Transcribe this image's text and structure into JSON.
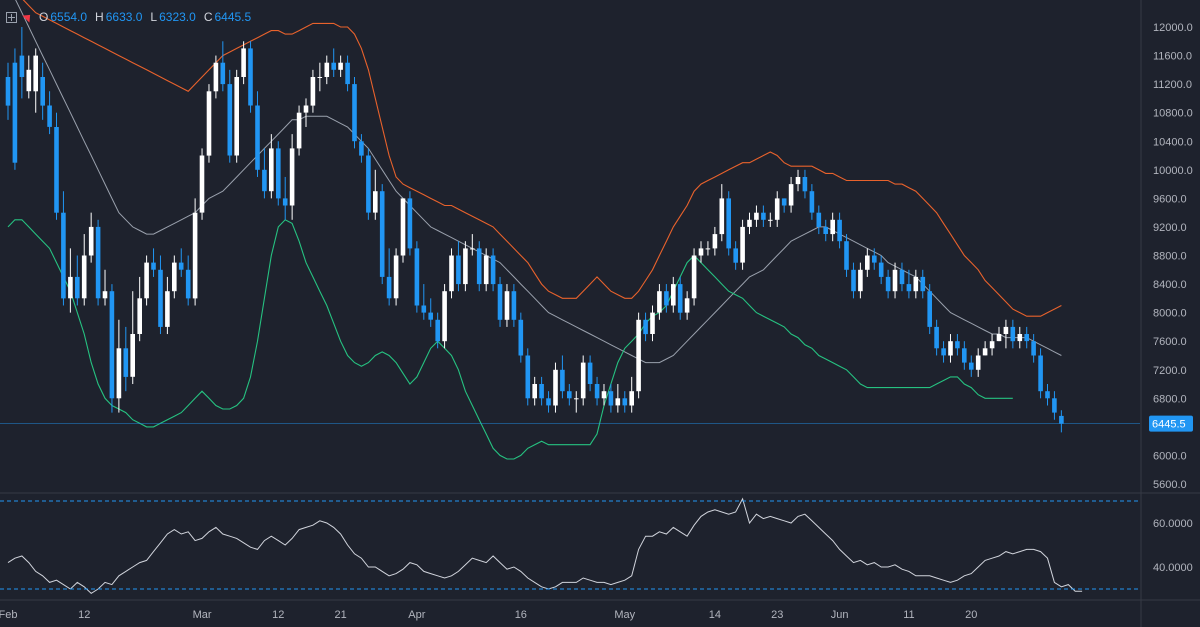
{
  "ohlc": {
    "o_label": "O",
    "o": "6554.0",
    "h_label": "H",
    "h": "6633.0",
    "l_label": "L",
    "l": "6323.0",
    "c_label": "C",
    "c": "6445.5"
  },
  "colors": {
    "background": "#1e222d",
    "up_candle": "#ffffff",
    "down_candle": "#2196f3",
    "upper_band": "#e8622c",
    "lower_band": "#26c281",
    "middle_band": "#9aa1ad",
    "rsi_line": "#d1d4dc",
    "dashed_level": "#2196f3"
  },
  "chart_data": [
    {
      "type": "candlestick",
      "title": "",
      "y_axis_ticks": [
        "12000.0",
        "11600.0",
        "11200.0",
        "10800.0",
        "10400.0",
        "10000.0",
        "9600.0",
        "9200.0",
        "8800.0",
        "8400.0",
        "8000.0",
        "7600.0",
        "7200.0",
        "6800.0",
        "6400.0",
        "6000.0",
        "5600.0"
      ],
      "ylim": [
        5500,
        12100
      ],
      "x_axis_labels": [
        {
          "label": "Feb",
          "day": 0
        },
        {
          "label": "12",
          "day": 11
        },
        {
          "label": "Mar",
          "day": 28
        },
        {
          "label": "12",
          "day": 39
        },
        {
          "label": "21",
          "day": 48
        },
        {
          "label": "Apr",
          "day": 59
        },
        {
          "label": "16",
          "day": 74
        },
        {
          "label": "May",
          "day": 89
        },
        {
          "label": "14",
          "day": 102
        },
        {
          "label": "23",
          "day": 111
        },
        {
          "label": "Jun",
          "day": 120
        },
        {
          "label": "11",
          "day": 130
        },
        {
          "label": "20",
          "day": 139
        }
      ],
      "last_price": 6445.5,
      "last_price_label": "6445.5",
      "closes": [
        10900,
        10100,
        11300,
        11400,
        11600,
        10900,
        10600,
        9400,
        8200,
        8500,
        8200,
        8800,
        9200,
        8200,
        8300,
        6800,
        7500,
        7100,
        7700,
        8200,
        8700,
        8600,
        7800,
        8300,
        8700,
        8600,
        8200,
        9400,
        10200,
        11100,
        11500,
        11200,
        10200,
        11300,
        11700,
        10900,
        10000,
        9700,
        10300,
        9600,
        9500,
        10300,
        10800,
        10900,
        11300,
        11300,
        11500,
        11400,
        11500,
        11200,
        10400,
        10200,
        9400,
        9700,
        8500,
        8200,
        8800,
        9600,
        8900,
        8100,
        8000,
        7900,
        7600,
        8300,
        8800,
        8400,
        8900,
        8900,
        8400,
        8800,
        8400,
        7900,
        8300,
        7900,
        7400,
        6800,
        7000,
        6800,
        6700,
        7200,
        6900,
        6800,
        6800,
        7300,
        7000,
        6800,
        6900,
        6700,
        6800,
        6700,
        6900,
        7900,
        7700,
        8000,
        8300,
        8100,
        8400,
        8000,
        8200,
        8800,
        8900,
        8900,
        9100,
        9600,
        8900,
        8700,
        9200,
        9300,
        9400,
        9300,
        9300,
        9600,
        9500,
        9800,
        9900,
        9700,
        9400,
        9200,
        9100,
        9300,
        9000,
        8600,
        8300,
        8600,
        8800,
        8700,
        8500,
        8300,
        8600,
        8400,
        8300,
        8500,
        8300,
        7800,
        7500,
        7400,
        7600,
        7500,
        7300,
        7200,
        7400,
        7500,
        7600,
        7700,
        7800,
        7600,
        7700,
        7600,
        7400,
        6900,
        6800,
        6600,
        6445.5
      ],
      "opens": [
        11300,
        11500,
        11600,
        11100,
        11100,
        11300,
        10900,
        10600,
        9400,
        8200,
        8500,
        8200,
        8800,
        9200,
        8200,
        8300,
        6800,
        7500,
        7100,
        7700,
        8200,
        8700,
        8600,
        7800,
        8300,
        8700,
        8600,
        8200,
        9400,
        10200,
        11100,
        11500,
        11200,
        10200,
        11300,
        11700,
        10900,
        10000,
        9700,
        10300,
        9600,
        9500,
        10300,
        10800,
        10900,
        11300,
        11300,
        11500,
        11400,
        11500,
        11200,
        10400,
        10200,
        9400,
        9700,
        8500,
        8200,
        8800,
        9600,
        8900,
        8100,
        8000,
        7900,
        7600,
        8300,
        8800,
        8400,
        8900,
        8900,
        8400,
        8800,
        8400,
        7900,
        8300,
        7900,
        7400,
        6800,
        7000,
        6800,
        6700,
        7200,
        6900,
        6800,
        6800,
        7300,
        7000,
        6800,
        6900,
        6700,
        6800,
        6700,
        6900,
        7900,
        7700,
        8000,
        8300,
        8100,
        8400,
        8000,
        8200,
        8800,
        8900,
        8900,
        9100,
        9600,
        8900,
        8700,
        9200,
        9300,
        9400,
        9300,
        9300,
        9600,
        9500,
        9800,
        9900,
        9700,
        9400,
        9200,
        9100,
        9300,
        9000,
        8600,
        8300,
        8600,
        8800,
        8700,
        8500,
        8300,
        8600,
        8400,
        8300,
        8500,
        8300,
        7800,
        7500,
        7400,
        7600,
        7500,
        7300,
        7200,
        7400,
        7500,
        7600,
        7700,
        7800,
        7600,
        7700,
        7600,
        7400,
        6900,
        6800,
        6554
      ],
      "highs": [
        11500,
        11700,
        12000,
        11600,
        11700,
        11500,
        11100,
        10800,
        9700,
        8900,
        8800,
        9100,
        9400,
        9300,
        8600,
        8400,
        7900,
        7800,
        8300,
        8500,
        8800,
        8900,
        8800,
        8500,
        8800,
        8900,
        8800,
        9600,
        10300,
        11200,
        11600,
        11800,
        11400,
        11400,
        11800,
        11800,
        11100,
        10300,
        10500,
        10400,
        9900,
        10500,
        10900,
        11000,
        11400,
        11500,
        11600,
        11700,
        11600,
        11600,
        11300,
        10500,
        10300,
        10000,
        9800,
        8900,
        8900,
        9600,
        9700,
        9000,
        8400,
        8200,
        8000,
        8400,
        8900,
        9000,
        9000,
        9100,
        9000,
        8900,
        8900,
        8500,
        8400,
        8400,
        8000,
        7500,
        7100,
        7100,
        6900,
        7300,
        7400,
        7000,
        6900,
        7400,
        7400,
        7100,
        7000,
        7000,
        7000,
        6900,
        7100,
        8000,
        8000,
        8100,
        8400,
        8400,
        8500,
        8500,
        8300,
        8900,
        9000,
        9000,
        9200,
        9800,
        9700,
        9000,
        9300,
        9400,
        9500,
        9500,
        9400,
        9700,
        9600,
        9900,
        10000,
        10000,
        9800,
        9500,
        9300,
        9400,
        9400,
        9100,
        8700,
        8700,
        8900,
        8900,
        8800,
        8600,
        8700,
        8700,
        8600,
        8600,
        8600,
        8400,
        7900,
        7600,
        7700,
        7700,
        7600,
        7400,
        7500,
        7600,
        7700,
        7800,
        7900,
        7900,
        7800,
        7800,
        7700,
        7500,
        7000,
        6900,
        6633
      ],
      "lows": [
        10700,
        10000,
        11000,
        11000,
        10800,
        10700,
        10500,
        9300,
        8100,
        8000,
        8100,
        8100,
        8700,
        8100,
        8100,
        6600,
        6600,
        6900,
        7000,
        7600,
        8100,
        8500,
        7700,
        7700,
        8200,
        8500,
        8100,
        8100,
        9300,
        10100,
        11000,
        11100,
        10100,
        10100,
        11200,
        10800,
        9900,
        9600,
        9600,
        9500,
        9300,
        9300,
        10200,
        10600,
        10800,
        11100,
        11200,
        11300,
        11300,
        11100,
        10300,
        10100,
        9300,
        9300,
        8400,
        8100,
        8100,
        8700,
        8800,
        8000,
        7900,
        7800,
        7500,
        7500,
        8200,
        8300,
        8300,
        8800,
        8300,
        8300,
        8300,
        7800,
        7800,
        7800,
        7300,
        6700,
        6700,
        6700,
        6600,
        6600,
        6800,
        6700,
        6600,
        6700,
        6900,
        6700,
        6700,
        6600,
        6600,
        6600,
        6600,
        6800,
        7600,
        7600,
        7900,
        8000,
        8000,
        7900,
        7900,
        8100,
        8700,
        8800,
        8800,
        9000,
        8800,
        8600,
        8600,
        9100,
        9200,
        9200,
        9200,
        9200,
        9400,
        9400,
        9700,
        9600,
        9300,
        9100,
        9000,
        9000,
        8900,
        8500,
        8200,
        8200,
        8500,
        8600,
        8400,
        8200,
        8200,
        8300,
        8200,
        8200,
        8200,
        7700,
        7400,
        7300,
        7300,
        7400,
        7200,
        7100,
        7100,
        7400,
        7400,
        7600,
        7500,
        7500,
        7500,
        7500,
        7300,
        6800,
        6700,
        6500,
        6323
      ],
      "bollinger_upper": [
        12600,
        12500,
        12400,
        12300,
        12200,
        12150,
        12100,
        12050,
        12000,
        11950,
        11900,
        11850,
        11800,
        11750,
        11700,
        11650,
        11600,
        11550,
        11500,
        11450,
        11400,
        11350,
        11300,
        11250,
        11200,
        11150,
        11100,
        11200,
        11300,
        11400,
        11500,
        11600,
        11650,
        11700,
        11750,
        11800,
        11850,
        11900,
        11950,
        11950,
        11900,
        11900,
        11950,
        12000,
        12050,
        12050,
        12050,
        12050,
        12000,
        12000,
        11900,
        11700,
        11400,
        11000,
        10600,
        10200,
        9900,
        9800,
        9750,
        9700,
        9650,
        9600,
        9550,
        9500,
        9500,
        9450,
        9400,
        9350,
        9300,
        9250,
        9200,
        9100,
        9000,
        8900,
        8800,
        8700,
        8550,
        8400,
        8300,
        8250,
        8200,
        8200,
        8200,
        8300,
        8400,
        8500,
        8400,
        8300,
        8250,
        8200,
        8200,
        8300,
        8450,
        8600,
        8800,
        9000,
        9200,
        9350,
        9500,
        9700,
        9800,
        9850,
        9900,
        9950,
        10000,
        10050,
        10100,
        10100,
        10150,
        10200,
        10250,
        10200,
        10100,
        10050,
        10050,
        10050,
        10050,
        10000,
        9950,
        9950,
        9900,
        9850,
        9850,
        9850,
        9850,
        9850,
        9850,
        9850,
        9800,
        9800,
        9750,
        9700,
        9600,
        9500,
        9400,
        9250,
        9100,
        8950,
        8800,
        8700,
        8600,
        8450,
        8350,
        8250,
        8150,
        8050,
        8000,
        7950,
        7950,
        7950,
        8000,
        8050,
        8100
      ],
      "bollinger_middle": [
        12600,
        12400,
        12200,
        12000,
        11800,
        11600,
        11400,
        11200,
        11000,
        10800,
        10600,
        10400,
        10200,
        10000,
        9800,
        9600,
        9400,
        9300,
        9200,
        9150,
        9100,
        9100,
        9150,
        9200,
        9250,
        9300,
        9350,
        9400,
        9500,
        9600,
        9650,
        9700,
        9800,
        9900,
        10000,
        10100,
        10200,
        10300,
        10400,
        10500,
        10600,
        10700,
        10700,
        10750,
        10750,
        10750,
        10750,
        10700,
        10650,
        10600,
        10500,
        10400,
        10300,
        10150,
        10000,
        9850,
        9700,
        9600,
        9500,
        9400,
        9300,
        9200,
        9150,
        9100,
        9050,
        9000,
        8950,
        8900,
        8850,
        8800,
        8750,
        8700,
        8600,
        8500,
        8400,
        8300,
        8200,
        8100,
        8000,
        7950,
        7900,
        7850,
        7800,
        7750,
        7700,
        7650,
        7600,
        7550,
        7500,
        7450,
        7400,
        7350,
        7300,
        7300,
        7300,
        7350,
        7400,
        7500,
        7600,
        7700,
        7800,
        7900,
        8000,
        8100,
        8200,
        8300,
        8400,
        8500,
        8550,
        8600,
        8700,
        8800,
        8900,
        9000,
        9050,
        9100,
        9150,
        9200,
        9200,
        9150,
        9100,
        9050,
        9000,
        8950,
        8900,
        8850,
        8800,
        8700,
        8650,
        8600,
        8550,
        8500,
        8400,
        8300,
        8200,
        8100,
        8000,
        7950,
        7900,
        7850,
        7800,
        7750,
        7700,
        7700,
        7650,
        7650,
        7650,
        7650,
        7600,
        7550,
        7500,
        7450,
        7400
      ],
      "bollinger_lower": [
        9200,
        9300,
        9300,
        9200,
        9100,
        9000,
        8900,
        8700,
        8500,
        8300,
        8000,
        7700,
        7300,
        7000,
        6800,
        6700,
        6650,
        6600,
        6500,
        6450,
        6400,
        6400,
        6450,
        6500,
        6550,
        6600,
        6700,
        6800,
        6900,
        6800,
        6700,
        6650,
        6650,
        6700,
        6800,
        7100,
        7600,
        8200,
        8800,
        9200,
        9300,
        9250,
        9000,
        8700,
        8500,
        8300,
        8100,
        7850,
        7600,
        7400,
        7300,
        7250,
        7300,
        7400,
        7450,
        7400,
        7300,
        7150,
        7000,
        7100,
        7300,
        7500,
        7600,
        7500,
        7400,
        7200,
        6900,
        6700,
        6500,
        6300,
        6100,
        6000,
        5950,
        5950,
        6000,
        6100,
        6150,
        6200,
        6150,
        6150,
        6150,
        6150,
        6150,
        6150,
        6150,
        6300,
        6700,
        7000,
        7300,
        7500,
        7600,
        7700,
        7850,
        7950,
        8000,
        8100,
        8300,
        8500,
        8700,
        8800,
        8700,
        8600,
        8500,
        8400,
        8300,
        8250,
        8200,
        8100,
        8000,
        7950,
        7900,
        7850,
        7800,
        7700,
        7650,
        7550,
        7500,
        7400,
        7350,
        7300,
        7250,
        7200,
        7100,
        7000,
        6950,
        6950,
        6950,
        6950,
        6950,
        6950,
        6950,
        6950,
        6950,
        6950,
        7000,
        7050,
        7100,
        7100,
        7000,
        6950,
        6850,
        6800,
        6800,
        6800,
        6800,
        6800
      ]
    },
    {
      "type": "line",
      "title": "",
      "y_axis_ticks": [
        "60.0000",
        "40.0000"
      ],
      "ylim": [
        27,
        71
      ],
      "levels": [
        70,
        30
      ],
      "values": [
        42,
        44,
        45,
        42,
        38,
        36,
        33,
        34,
        32,
        30,
        33,
        31,
        28,
        30,
        33,
        32,
        36,
        38,
        40,
        42,
        43,
        47,
        51,
        55,
        57,
        55,
        56,
        52,
        53,
        56,
        58,
        55,
        54,
        53,
        51,
        49,
        48,
        52,
        54,
        52,
        50,
        53,
        57,
        58,
        59,
        61,
        60,
        58,
        55,
        50,
        46,
        44,
        40,
        40,
        38,
        36,
        37,
        39,
        42,
        41,
        38,
        37,
        36,
        35,
        36,
        38,
        41,
        44,
        43,
        42,
        45,
        42,
        39,
        40,
        38,
        35,
        33,
        31,
        30,
        31,
        33,
        33,
        33,
        35,
        34,
        33,
        33,
        32,
        33,
        34,
        36,
        48,
        54,
        54,
        56,
        55,
        58,
        56,
        54,
        59,
        63,
        65,
        66,
        65,
        64,
        65,
        71,
        60,
        64,
        62,
        63,
        62,
        61,
        60,
        63,
        64,
        61,
        58,
        55,
        52,
        48,
        45,
        42,
        43,
        41,
        42,
        40,
        40,
        41,
        39,
        38,
        36,
        36,
        36,
        35,
        34,
        33,
        34,
        36,
        37,
        40,
        43,
        44,
        45,
        47,
        46,
        47,
        48,
        48,
        47,
        44,
        33,
        31,
        32,
        29,
        29
      ]
    }
  ]
}
